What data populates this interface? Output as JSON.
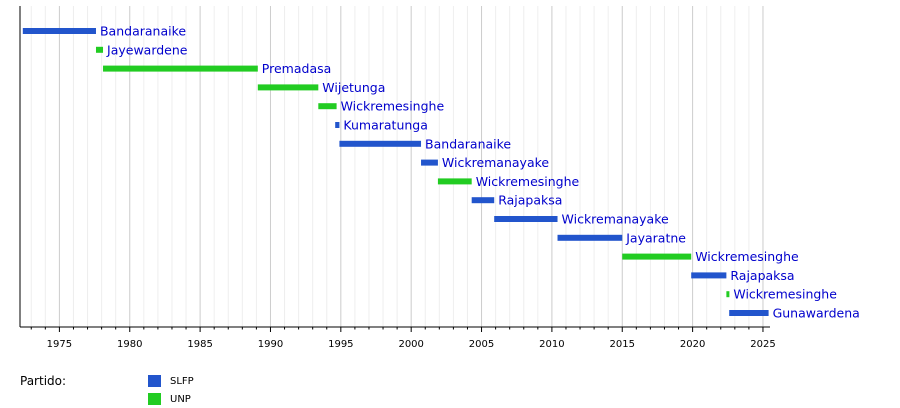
{
  "chart_data": {
    "type": "bar",
    "subtype": "horizontal-timeline",
    "xlim": [
      1972.2,
      2025.5
    ],
    "x_ticks": [
      1975,
      1980,
      1985,
      1990,
      1995,
      2000,
      2005,
      2010,
      2015,
      2020,
      2025
    ],
    "grid": "vertical minor lines every year, major every 5 years",
    "series": [
      {
        "name": "SLFP",
        "color": "#2255cc"
      },
      {
        "name": "UNP",
        "color": "#22cc22"
      }
    ],
    "bars": [
      {
        "label": "Bandaranaike",
        "party": "SLFP",
        "start": 1972.4,
        "end": 1977.6
      },
      {
        "label": "Jayewardene",
        "party": "UNP",
        "start": 1977.6,
        "end": 1978.1
      },
      {
        "label": "Premadasa",
        "party": "UNP",
        "start": 1978.1,
        "end": 1989.1
      },
      {
        "label": "Wijetunga",
        "party": "UNP",
        "start": 1989.1,
        "end": 1993.4
      },
      {
        "label": "Wickremesinghe",
        "party": "UNP",
        "start": 1993.4,
        "end": 1994.7
      },
      {
        "label": "Kumaratunga",
        "party": "SLFP",
        "start": 1994.6,
        "end": 1994.9
      },
      {
        "label": "Bandaranaike",
        "party": "SLFP",
        "start": 1994.9,
        "end": 2000.7
      },
      {
        "label": "Wickremanayake",
        "party": "SLFP",
        "start": 2000.7,
        "end": 2001.9
      },
      {
        "label": "Wickremesinghe",
        "party": "UNP",
        "start": 2001.9,
        "end": 2004.3
      },
      {
        "label": "Rajapaksa",
        "party": "SLFP",
        "start": 2004.3,
        "end": 2005.9
      },
      {
        "label": "Wickremanayake",
        "party": "SLFP",
        "start": 2005.9,
        "end": 2010.4
      },
      {
        "label": "Jayaratne",
        "party": "SLFP",
        "start": 2010.4,
        "end": 2015.0
      },
      {
        "label": "Wickremesinghe",
        "party": "UNP",
        "start": 2015.0,
        "end": 2019.9
      },
      {
        "label": "Rajapaksa",
        "party": "SLFP",
        "start": 2019.9,
        "end": 2022.4
      },
      {
        "label": "Wickremesinghe",
        "party": "UNP",
        "start": 2022.4,
        "end": 2022.6
      },
      {
        "label": "Gunawardena",
        "party": "SLFP",
        "start": 2022.6,
        "end": 2025.4
      }
    ]
  },
  "legend": {
    "title": "Partido:",
    "items": [
      {
        "label": "SLFP",
        "color": "#2255cc"
      },
      {
        "label": "UNP",
        "color": "#22cc22"
      }
    ]
  }
}
